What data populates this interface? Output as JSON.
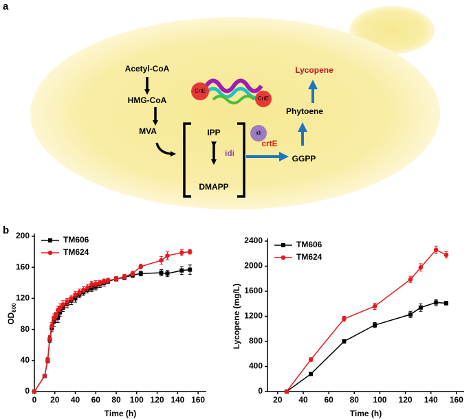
{
  "panels": [
    "a",
    "b"
  ],
  "diagram": {
    "labels": [
      "Acetyl-CoA",
      "HMG-CoA",
      "MVA",
      "IPP",
      "idi",
      "DMAPP",
      "crtE",
      "GGPP",
      "Phytoene",
      "Lycopene"
    ],
    "protein_labels": [
      "CrtE",
      "CrtE",
      "idi"
    ]
  },
  "chart_data": [
    {
      "type": "line",
      "x_label": "Time (h)",
      "y_label": "OD",
      "y_label_subscript": "600",
      "xlim": [
        0,
        168
      ],
      "xticks": [
        0,
        20,
        40,
        60,
        80,
        100,
        120,
        140,
        160
      ],
      "ylim": [
        0,
        200
      ],
      "yticks": [
        0,
        40,
        80,
        120,
        160,
        200
      ],
      "legend": "upper left",
      "series": [
        {
          "name": "TM606",
          "color": "#000000",
          "marker": "square",
          "x": [
            0,
            10,
            13,
            15,
            17,
            19,
            21,
            23,
            25,
            28,
            32,
            36,
            40,
            44,
            48,
            52,
            56,
            60,
            64,
            68,
            72,
            80,
            88,
            96,
            104,
            124,
            130,
            144,
            152
          ],
          "values": [
            0,
            20,
            40,
            67,
            82,
            90,
            95,
            95,
            102,
            108,
            113,
            117,
            120,
            125,
            128,
            131,
            133,
            135,
            138,
            140,
            142,
            145,
            147,
            150,
            152,
            153,
            152,
            156,
            157
          ],
          "errors": [
            0,
            2,
            3,
            4,
            5,
            6,
            6,
            6,
            5,
            5,
            5,
            5,
            5,
            4,
            4,
            4,
            4,
            4,
            4,
            4,
            3,
            3,
            3,
            3,
            3,
            4,
            4,
            5,
            6
          ]
        },
        {
          "name": "TM624",
          "color": "#e8191c",
          "marker": "circle",
          "x": [
            0,
            10,
            13,
            15,
            17,
            19,
            21,
            23,
            25,
            28,
            32,
            36,
            40,
            44,
            48,
            52,
            56,
            60,
            64,
            68,
            72,
            80,
            88,
            96,
            104,
            124,
            130,
            144,
            152
          ],
          "values": [
            0,
            20,
            41,
            68,
            84,
            95,
            97,
            105,
            108,
            112,
            116,
            120,
            125,
            128,
            131,
            134,
            138,
            139,
            140,
            142,
            143,
            145,
            148,
            152,
            161,
            169,
            175,
            179,
            180
          ],
          "errors": [
            0,
            2,
            3,
            4,
            5,
            5,
            5,
            5,
            5,
            5,
            4,
            4,
            4,
            4,
            4,
            4,
            4,
            4,
            3,
            3,
            3,
            3,
            3,
            3,
            3,
            5,
            5,
            4,
            3
          ]
        }
      ]
    },
    {
      "type": "line",
      "x_label": "Time (h)",
      "y_label": "Lycopene (mg/L)",
      "xlim": [
        12,
        166
      ],
      "xticks": [
        20,
        40,
        60,
        80,
        100,
        120,
        140,
        160
      ],
      "ylim": [
        0,
        2400
      ],
      "yticks": [
        0,
        400,
        800,
        1200,
        1600,
        2000,
        2400
      ],
      "legend": "upper left",
      "series": [
        {
          "name": "TM606",
          "color": "#000000",
          "marker": "square",
          "x": [
            27,
            46,
            72,
            96,
            124,
            132,
            144,
            152
          ],
          "values": [
            0,
            280,
            800,
            1060,
            1230,
            1340,
            1420,
            1410
          ],
          "errors": [
            0,
            20,
            30,
            40,
            50,
            60,
            50,
            30
          ]
        },
        {
          "name": "TM624",
          "color": "#e8191c",
          "marker": "circle",
          "x": [
            27,
            46,
            72,
            96,
            124,
            132,
            144,
            152
          ],
          "values": [
            0,
            510,
            1160,
            1360,
            1790,
            1980,
            2260,
            2180
          ],
          "errors": [
            0,
            30,
            40,
            50,
            50,
            60,
            60,
            50
          ]
        }
      ]
    }
  ]
}
